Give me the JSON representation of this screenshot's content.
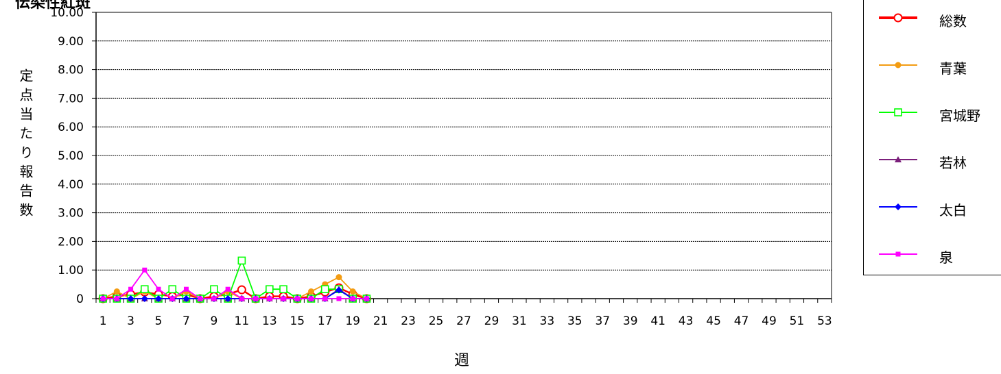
{
  "chart_data": {
    "type": "line",
    "title": "伝染性紅斑",
    "xlabel": "週",
    "ylabel": "定点当たり報告数",
    "ylim": [
      0,
      10
    ],
    "xlim": [
      1,
      53
    ],
    "yticks": [
      "0",
      "1.00",
      "2.00",
      "3.00",
      "4.00",
      "5.00",
      "6.00",
      "7.00",
      "8.00",
      "9.00",
      "10.00"
    ],
    "xticks": [
      "1",
      "3",
      "5",
      "7",
      "9",
      "11",
      "13",
      "15",
      "17",
      "19",
      "21",
      "23",
      "25",
      "27",
      "29",
      "31",
      "33",
      "35",
      "37",
      "39",
      "41",
      "43",
      "45",
      "47",
      "49",
      "51",
      "53"
    ],
    "grid": true,
    "legend_position": "right",
    "x": [
      1,
      2,
      3,
      4,
      5,
      6,
      7,
      8,
      9,
      10,
      11,
      12,
      13,
      14,
      15,
      16,
      17,
      18,
      19,
      20
    ],
    "series": [
      {
        "name": "総数",
        "color": "#ff0000",
        "marker": "open-circle",
        "values": [
          0,
          0.08,
          0.15,
          0.23,
          0.15,
          0.08,
          0.15,
          0,
          0.08,
          0.15,
          0.31,
          0,
          0.08,
          0.08,
          0,
          0.08,
          0.23,
          0.38,
          0.15,
          0
        ]
      },
      {
        "name": "青葉",
        "color": "#f39c12",
        "marker": "circle",
        "values": [
          0,
          0.25,
          0,
          0.25,
          0,
          0,
          0.25,
          0,
          0,
          0.25,
          0,
          0,
          0,
          0,
          0,
          0.25,
          0.5,
          0.75,
          0.25,
          0
        ]
      },
      {
        "name": "宮城野",
        "color": "#00ff00",
        "marker": "open-square",
        "values": [
          0,
          0,
          0,
          0.33,
          0,
          0.33,
          0,
          0,
          0.33,
          0,
          1.33,
          0,
          0.33,
          0.33,
          0,
          0,
          0.33,
          0.33,
          0,
          0
        ]
      },
      {
        "name": "若林",
        "color": "#7b1f7b",
        "marker": "triangle",
        "values": [
          0,
          0,
          0,
          0,
          0,
          0,
          0,
          0,
          0,
          0,
          0,
          0,
          0,
          0,
          0,
          0,
          0,
          0.33,
          0,
          0
        ]
      },
      {
        "name": "太白",
        "color": "#0000ff",
        "marker": "diamond",
        "values": [
          0,
          0,
          0,
          0,
          0,
          0,
          0,
          0,
          0,
          0,
          0,
          0,
          0,
          0,
          0,
          0,
          0,
          0.3,
          0,
          0
        ]
      },
      {
        "name": "泉",
        "color": "#ff00ff",
        "marker": "square",
        "values": [
          0,
          0,
          0.33,
          1.0,
          0.33,
          0,
          0.33,
          0,
          0,
          0.33,
          0,
          0,
          0,
          0,
          0,
          0,
          0,
          0,
          0,
          0
        ]
      }
    ]
  }
}
